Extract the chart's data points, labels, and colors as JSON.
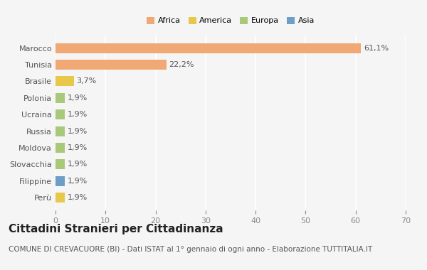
{
  "categories": [
    "Marocco",
    "Tunisia",
    "Brasile",
    "Polonia",
    "Ucraina",
    "Russia",
    "Moldova",
    "Slovacchia",
    "Filippine",
    "Perù"
  ],
  "values": [
    61.1,
    22.2,
    3.7,
    1.9,
    1.9,
    1.9,
    1.9,
    1.9,
    1.9,
    1.9
  ],
  "labels": [
    "61,1%",
    "22,2%",
    "3,7%",
    "1,9%",
    "1,9%",
    "1,9%",
    "1,9%",
    "1,9%",
    "1,9%",
    "1,9%"
  ],
  "bar_colors": [
    "#F0A875",
    "#F0A875",
    "#E8C84A",
    "#A8C87A",
    "#A8C87A",
    "#A8C87A",
    "#A8C87A",
    "#A8C87A",
    "#6E9EC8",
    "#E8C84A"
  ],
  "legend_labels": [
    "Africa",
    "America",
    "Europa",
    "Asia"
  ],
  "legend_colors": [
    "#F0A875",
    "#E8C84A",
    "#A8C87A",
    "#6E9EC8"
  ],
  "xlim": [
    0,
    70
  ],
  "xticks": [
    0,
    10,
    20,
    30,
    40,
    50,
    60,
    70
  ],
  "title": "Cittadini Stranieri per Cittadinanza",
  "subtitle": "COMUNE DI CREVACUORE (BI) - Dati ISTAT al 1° gennaio di ogni anno - Elaborazione TUTTITALIA.IT",
  "bg_color": "#f5f5f5",
  "bar_height": 0.6,
  "title_fontsize": 11,
  "subtitle_fontsize": 7.5,
  "label_fontsize": 8,
  "tick_fontsize": 8
}
